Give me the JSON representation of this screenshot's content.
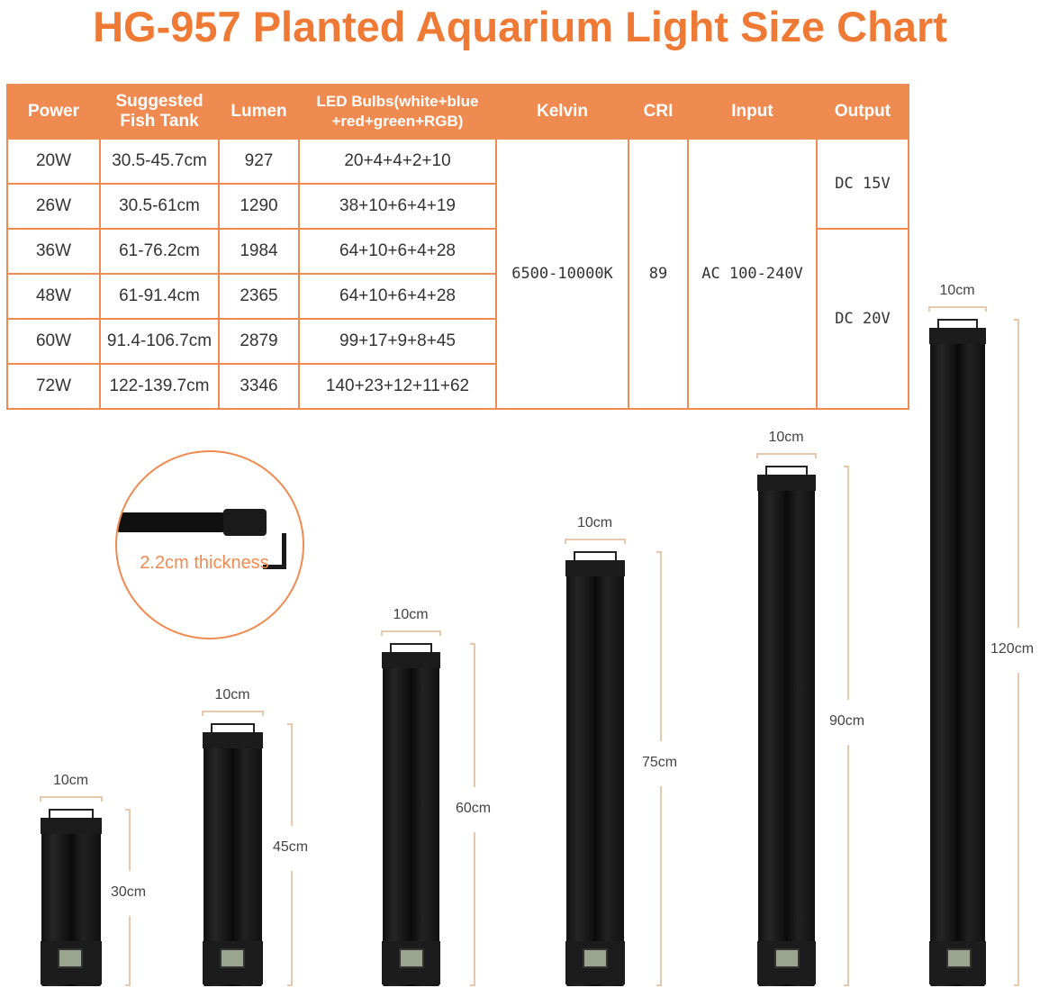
{
  "title": "HG-957 Planted Aquarium Light Size Chart",
  "table": {
    "headers": [
      "Power",
      "Suggested Fish Tank",
      "Lumen",
      "LED Bulbs(white+blue +red+green+RGB)",
      "Kelvin",
      "CRI",
      "Input",
      "Output"
    ],
    "rows": [
      [
        "20W",
        "30.5-45.7cm",
        "927",
        "20+4+4+2+10"
      ],
      [
        "26W",
        "30.5-61cm",
        "1290",
        "38+10+6+4+19"
      ],
      [
        "36W",
        "61-76.2cm",
        "1984",
        "64+10+6+4+28"
      ],
      [
        "48W",
        "61-91.4cm",
        "2365",
        "64+10+6+4+28"
      ],
      [
        "60W",
        "91.4-106.7cm",
        "2879",
        "99+17+9+8+45"
      ],
      [
        "72W",
        "122-139.7cm",
        "3346",
        "140+23+12+11+62"
      ]
    ],
    "kelvin": "6500-10000K",
    "cri": "89",
    "input": "AC 100-240V",
    "output": [
      "DC 15V",
      "DC 20V"
    ]
  },
  "thickness_label": "2.2cm thickness",
  "lamps": [
    {
      "width": "10cm",
      "length": "30cm"
    },
    {
      "width": "10cm",
      "length": "45cm"
    },
    {
      "width": "10cm",
      "length": "60cm"
    },
    {
      "width": "10cm",
      "length": "75cm"
    },
    {
      "width": "10cm",
      "length": "90cm"
    },
    {
      "width": "10cm",
      "length": "120cm"
    }
  ],
  "colors": {
    "accent": "#ef8a50",
    "title": "#ef7a35"
  }
}
